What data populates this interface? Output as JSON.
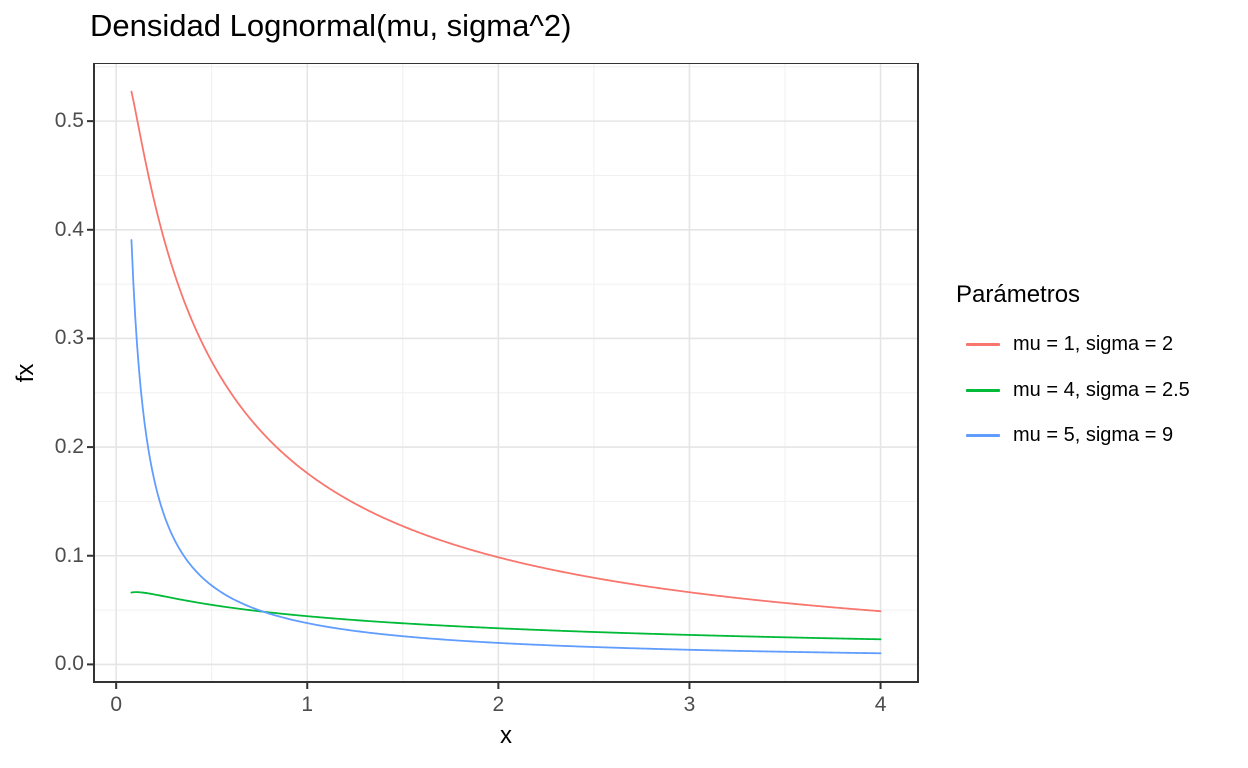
{
  "chart_data": {
    "type": "line",
    "title": "Densidad Lognormal(mu, sigma^2)",
    "xlabel": "x",
    "ylabel": "fx",
    "legend_title": "Parámetros",
    "legend_position": "right",
    "grid": true,
    "xlim": [
      -0.116,
      4.196
    ],
    "ylim": [
      -0.0162,
      0.5535
    ],
    "x_data_range": [
      0.08,
      4
    ],
    "x_ticks": {
      "values": [
        0,
        1,
        2,
        3,
        4
      ],
      "labels": [
        "0",
        "1",
        "2",
        "3",
        "4"
      ]
    },
    "y_ticks": {
      "values": [
        0.0,
        0.1,
        0.2,
        0.3,
        0.4,
        0.5
      ],
      "labels": [
        "0.0",
        "0.1",
        "0.2",
        "0.3",
        "0.4",
        "0.5"
      ]
    },
    "x_minor": [
      0.5,
      1.5,
      2.5,
      3.5
    ],
    "y_minor": [
      0.05,
      0.15,
      0.25,
      0.35,
      0.45,
      0.55
    ],
    "series": [
      {
        "name": "mu = 1, sigma = 2",
        "distribution": "lognormal",
        "mu": 1,
        "sigma": 2,
        "color": "#F8766D",
        "sample_x": [
          0.08,
          0.25,
          0.5,
          1,
          2,
          3,
          4
        ],
        "sample_fx": [
          0.5275,
          0.3916,
          0.2788,
          0.176,
          0.0986,
          0.0664,
          0.049
        ]
      },
      {
        "name": "mu = 4, sigma = 2.5",
        "distribution": "lognormal",
        "mu": 4,
        "sigma": 2.5,
        "color": "#00BA38",
        "sample_x": [
          0.08,
          0.25,
          0.5,
          1,
          2,
          3,
          4
        ],
        "sample_fx": [
          0.0661,
          0.0627,
          0.0548,
          0.0444,
          0.0333,
          0.0271,
          0.0231
        ]
      },
      {
        "name": "mu = 5, sigma = 9",
        "distribution": "lognormal",
        "mu": 5,
        "sigma": 9,
        "color": "#619CFF",
        "sample_x": [
          0.08,
          0.25,
          0.5,
          1,
          2,
          3,
          4
        ],
        "sample_fx": [
          0.3907,
          0.1379,
          0.0726,
          0.038,
          0.0198,
          0.0134,
          0.0102
        ]
      }
    ],
    "panel_style": {
      "background": "#FFFFFF",
      "border_color": "#333333",
      "grid_major_color": "#E5E5E5",
      "grid_minor_color": "#F0F0F0",
      "tick_color": "#333333",
      "tick_label_color": "#4D4D4D"
    }
  }
}
